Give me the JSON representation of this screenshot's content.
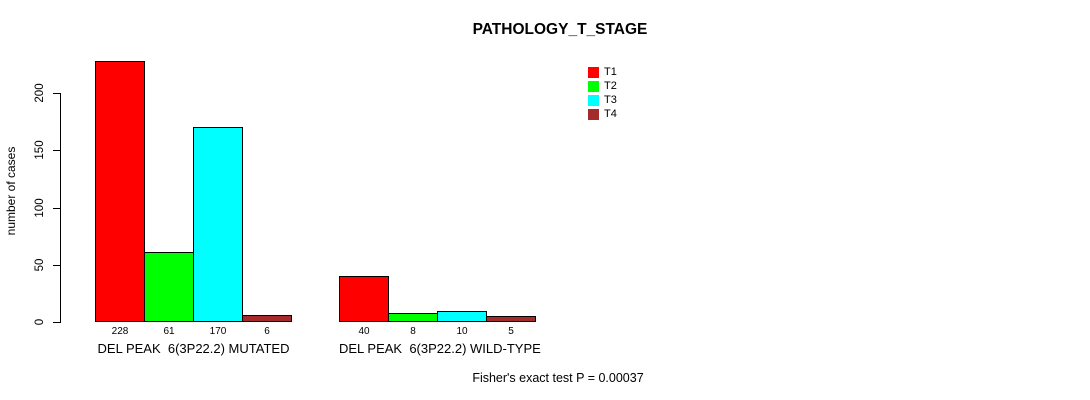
{
  "page": {
    "background": "#ffffff",
    "text_color": "#000000"
  },
  "chart_data": {
    "type": "bar",
    "title": "PATHOLOGY_T_STAGE",
    "xlabel": "",
    "ylabel": "number of cases",
    "ylim": [
      0,
      228
    ],
    "yticks": [
      0,
      50,
      100,
      150,
      200
    ],
    "grid": false,
    "legend_position": "top-right-inside",
    "bar_border_color": "#000000",
    "series": [
      {
        "name": "T1",
        "color": "#FF0000"
      },
      {
        "name": "T2",
        "color": "#00FF00"
      },
      {
        "name": "T3",
        "color": "#00FFFF"
      },
      {
        "name": "T4",
        "color": "#A52A2A"
      }
    ],
    "categories": [
      "DEL PEAK  6(3P22.2) MUTATED",
      "DEL PEAK  6(3P22.2) WILD-TYPE"
    ],
    "groups": [
      {
        "label": "DEL PEAK  6(3P22.2) MUTATED",
        "values": [
          228,
          61,
          170,
          6
        ]
      },
      {
        "label": "DEL PEAK  6(3P22.2) WILD-TYPE",
        "values": [
          40,
          8,
          10,
          5
        ]
      }
    ],
    "bar_value_labels_shown": true,
    "annotation": "Fisher's exact test P = 0.00037"
  }
}
